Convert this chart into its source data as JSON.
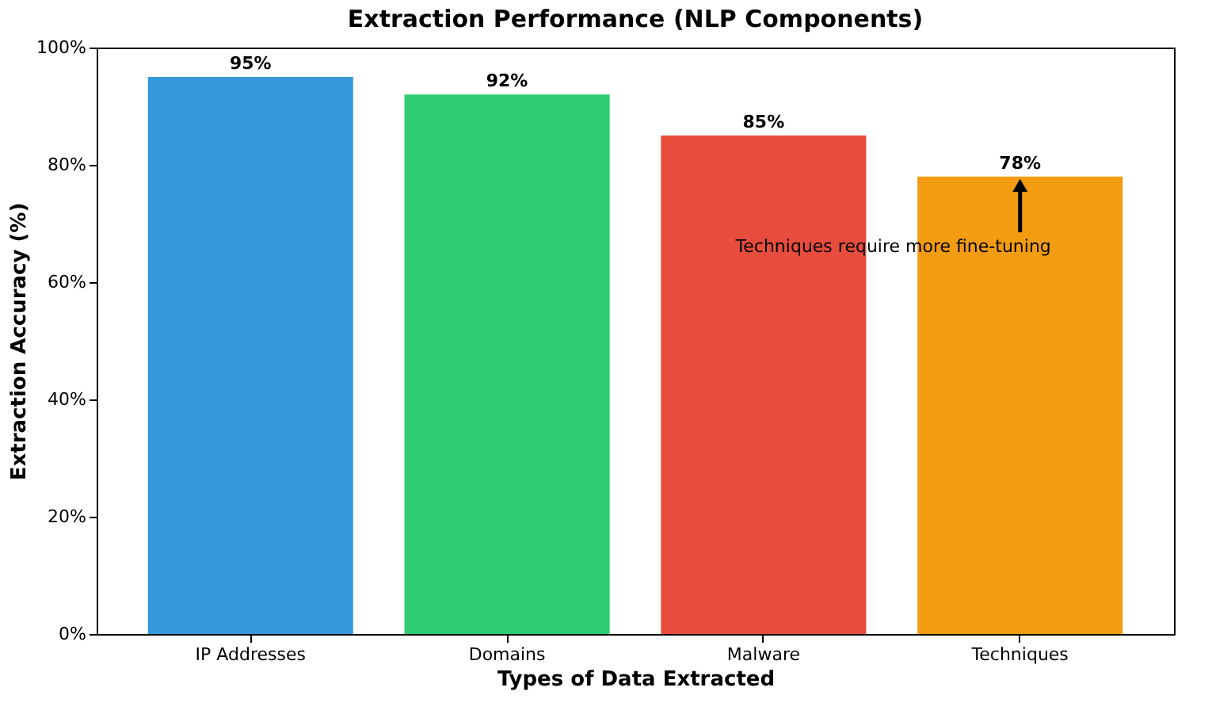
{
  "chart_data": {
    "type": "bar",
    "title": "Extraction Performance (NLP Components)",
    "xlabel": "Types of Data Extracted",
    "ylabel": "Extraction Accuracy (%)",
    "categories": [
      "IP Addresses",
      "Domains",
      "Malware",
      "Techniques"
    ],
    "values": [
      95,
      92,
      85,
      78
    ],
    "colors": [
      "#3498db",
      "#2ecc71",
      "#e74c3c",
      "#f39c12"
    ],
    "value_labels": [
      "95%",
      "92%",
      "85%",
      "78%"
    ],
    "ylim": [
      0,
      100
    ],
    "yticks": [
      {
        "value": 0,
        "label": "0%"
      },
      {
        "value": 20,
        "label": "20%"
      },
      {
        "value": 40,
        "label": "40%"
      },
      {
        "value": 60,
        "label": "60%"
      },
      {
        "value": 80,
        "label": "80%"
      },
      {
        "value": 100,
        "label": "100%"
      }
    ],
    "annotations": [
      {
        "text": "Techniques require more fine-tuning",
        "x": "Techniques",
        "y": 78
      }
    ],
    "grid": false
  }
}
